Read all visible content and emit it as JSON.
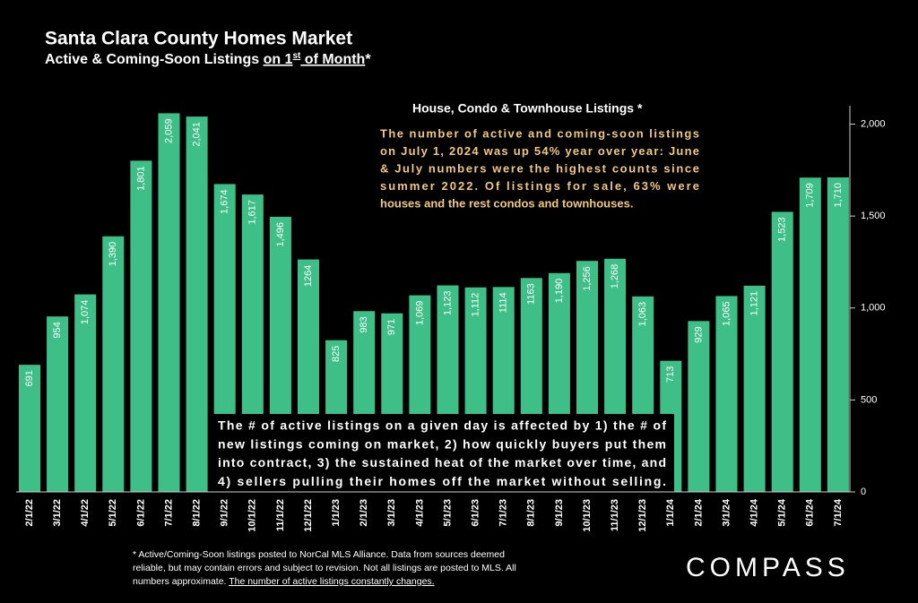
{
  "chart_data": {
    "type": "bar",
    "title": "Santa Clara County Homes Market",
    "subtitle_parts": [
      "Active & Coming-Soon Listings ",
      "on 1",
      "st",
      " of Month",
      "*"
    ],
    "chart_title": "House, Condo & Townhouse Listings *",
    "annotation_top": [
      "The number of active and coming-soon listings",
      "on July 1, 2024 was up 54% year over year: June",
      "& July numbers were the highest counts since",
      "summer 2022. Of listings for sale, 63% were",
      "houses and the rest condos and townhouses."
    ],
    "annotation_box": [
      "The # of active listings on a given day is affected by 1) the # of",
      "new listings coming on market, 2) how quickly buyers put them",
      "into contract, 3) the sustained heat of the market over time, and",
      "4) sellers pulling their homes off the market without selling."
    ],
    "footnote": [
      "* Active/Coming-Soon listings posted to NorCal MLS Alliance.  Data from sources deemed",
      "reliable, but may contain errors and subject to revision.  Not all listings are posted to MLS. All",
      "numbers approximate. "
    ],
    "footnote_underlined": "The number of active listings constantly changes.",
    "logo": "COMPASS",
    "categories": [
      "2/1/22",
      "3/1/22",
      "4/1/22",
      "5/1/22",
      "6/1/22",
      "7/1/22",
      "8/1/22",
      "9/1/22",
      "10/1/22",
      "11/1/22",
      "12/1/22",
      "1/1/23",
      "2/1/23",
      "3/1/23",
      "4/1/23",
      "5/1/23",
      "6/1/23",
      "7/1/23",
      "8/1/23",
      "9/1/23",
      "10/1/23",
      "11/1/23",
      "12/1/23",
      "1/1/24",
      "2/1/24",
      "3/1/24",
      "4/1/24",
      "5/1/24",
      "6/1/24",
      "7/1/24"
    ],
    "values": [
      691,
      954,
      1074,
      1390,
      1801,
      2059,
      2041,
      1674,
      1617,
      1496,
      1264,
      825,
      983,
      971,
      1069,
      1123,
      1112,
      1114,
      1163,
      1190,
      1256,
      1268,
      1063,
      713,
      929,
      1065,
      1121,
      1523,
      1709,
      1710
    ],
    "value_labels": [
      "691",
      "954",
      "1,074",
      "1,390",
      "1,801",
      "2,059",
      "2,041",
      "1,674",
      "1,617",
      "1,496",
      "1264",
      "825",
      "983",
      "971",
      "1,069",
      "1,123",
      "1,112",
      "1114",
      "1163",
      "1,190",
      "1,256",
      "1,268",
      "1,063",
      "713",
      "929",
      "1,065",
      "1,121",
      "1,523",
      "1,709",
      "1,710"
    ],
    "color": "#3fbf88",
    "ylim": [
      0,
      2100
    ],
    "yticks": [
      0,
      {
        "value": 500,
        "label": "500"
      },
      {
        "value": 1000,
        "label": "1,000"
      },
      {
        "value": 1500,
        "label": "1,500"
      },
      {
        "value": 2000,
        "label": "2,000"
      }
    ],
    "y_axis_side": "right",
    "grid": false
  }
}
